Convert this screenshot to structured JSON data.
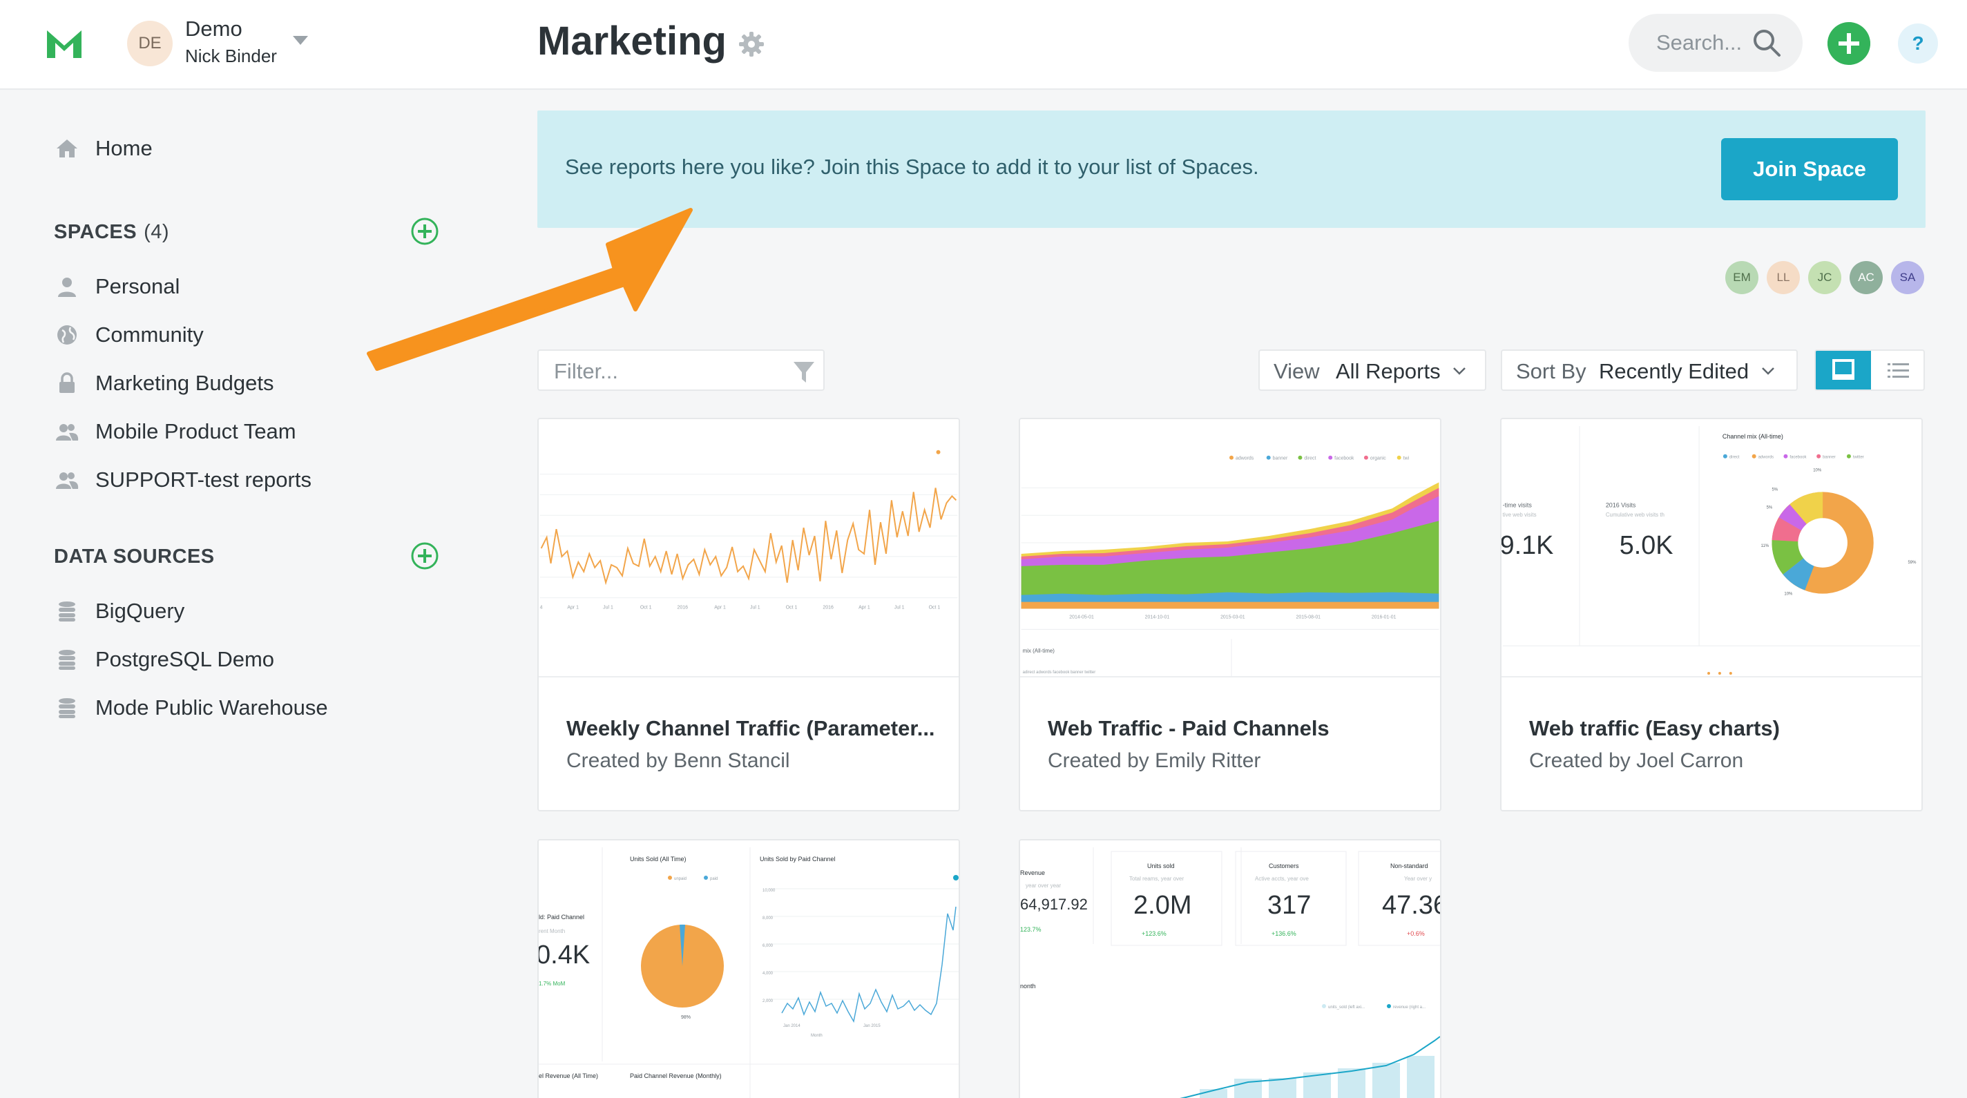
{
  "header": {
    "account": {
      "initials": "DE",
      "org": "Demo",
      "user": "Nick Binder"
    },
    "title": "Marketing",
    "search_placeholder": "Search...",
    "help_label": "?"
  },
  "sidebar": {
    "home_label": "Home",
    "spaces_heading": "SPACES",
    "spaces_count": "(4)",
    "spaces": [
      {
        "label": "Personal",
        "icon": "person-icon"
      },
      {
        "label": "Community",
        "icon": "globe-icon"
      },
      {
        "label": "Marketing Budgets",
        "icon": "lock-icon"
      },
      {
        "label": "Mobile Product Team",
        "icon": "people-icon"
      },
      {
        "label": "SUPPORT-test reports",
        "icon": "people-icon"
      }
    ],
    "data_sources_heading": "DATA SOURCES",
    "data_sources": [
      {
        "label": "BigQuery",
        "icon": "database-icon"
      },
      {
        "label": "PostgreSQL Demo",
        "icon": "database-icon"
      },
      {
        "label": "Mode Public Warehouse",
        "icon": "database-icon"
      }
    ]
  },
  "banner": {
    "text": "See reports here you like? Join this Space to add it to your list of Spaces.",
    "button_label": "Join Space"
  },
  "members": [
    {
      "initials": "EM",
      "color": "#b8d9b4"
    },
    {
      "initials": "LL",
      "color": "#f5dcc6"
    },
    {
      "initials": "JC",
      "color": "#c4e0b2"
    },
    {
      "initials": "AC",
      "color": "#8fb09c"
    },
    {
      "initials": "SA",
      "color": "#b7b6ea"
    }
  ],
  "controls": {
    "filter_placeholder": "Filter...",
    "view_key": "View",
    "view_value": "All Reports",
    "sort_key": "Sort By",
    "sort_value": "Recently Edited"
  },
  "colors": {
    "accent": "#1ba6c8",
    "green": "#33b35a",
    "banner_bg": "#cfeef3",
    "arrow": "#f7931e"
  },
  "reports": [
    {
      "title": "Weekly Channel Traffic (Parameter...",
      "author": "Created by Benn Stancil"
    },
    {
      "title": "Web Traffic - Paid Channels",
      "author": "Created by Emily Ritter"
    },
    {
      "title": "Web traffic (Easy charts)",
      "author": "Created by Joel Carron"
    },
    {
      "title": "",
      "author": ""
    },
    {
      "title": "",
      "author": ""
    }
  ],
  "thumbs": {
    "t3_kpi1_label": "-time visits",
    "t3_kpi1_sub": "tive web visits",
    "t3_kpi1_value": "9.1K",
    "t3_kpi2_label": "2016 Visits",
    "t3_kpi2_sub": "Cumulative web visits th",
    "t3_kpi2_value": "5.0K",
    "t3_pie_title": "Channel mix (All-time)",
    "t4_title1": "Units Sold (All Time)",
    "t4_title2": "Units Sold by Paid Channel",
    "t4_kpi_label": "ld: Paid Channel",
    "t4_kpi_sub": "rent Month",
    "t4_kpi_value": "0.4K",
    "t4_kpi_delta": "1.7% MoM",
    "t4_pie_pct": "98%",
    "t4_footer1": "el Revenue (All Time)",
    "t4_footer2": "Paid Channel Revenue (Monthly)",
    "t5_kpis": [
      {
        "label": "Revenue",
        "sub": "year over year",
        "value": "64,917.92",
        "delta": "123.7%"
      },
      {
        "label": "Units sold",
        "sub": "Total reams, year over",
        "value": "2.0M",
        "delta": "+123.6%"
      },
      {
        "label": "Customers",
        "sub": "Active accts, year ove",
        "value": "317",
        "delta": "+136.6%"
      },
      {
        "label": "Non-standard",
        "sub": "Year over y",
        "value": "47.36",
        "delta": "+0.6%"
      }
    ],
    "t5_month_label": "nonth"
  }
}
